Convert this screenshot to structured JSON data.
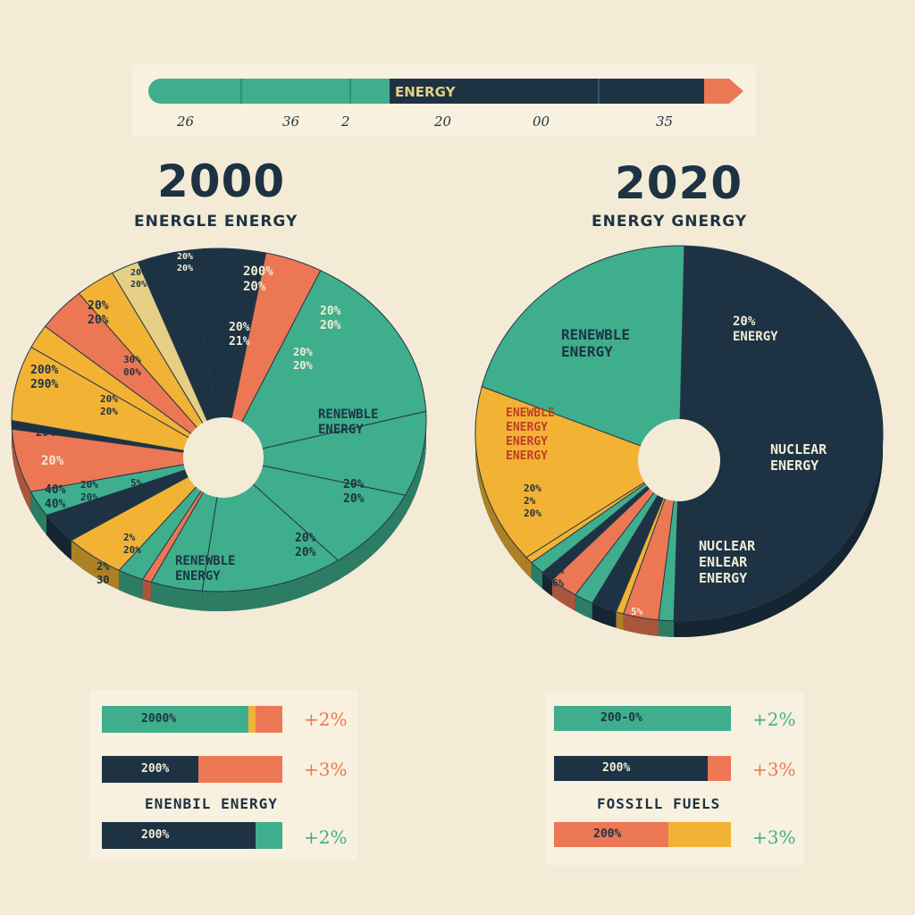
{
  "colors": {
    "teal": "#3fae8c",
    "navy": "#1d3344",
    "orange": "#ec7754",
    "yellow": "#f2b234",
    "cream": "#f3ebd6",
    "tan": "#e6cf85"
  },
  "banner": {
    "label": "ENERGY",
    "ticks": [
      "26",
      "36",
      "2",
      "20",
      "00",
      "35"
    ]
  },
  "chart_data": [
    {
      "type": "pie",
      "title": "2000",
      "subtitle": "ENERGLE ENERGY",
      "slices": [
        {
          "label": "200% 20%",
          "color": "navy",
          "share": 6
        },
        {
          "label": "20% 20%",
          "color": "orange",
          "share": 4.5
        },
        {
          "label": "RENEWBLE ENERGY",
          "color": "teal",
          "share": 16
        },
        {
          "label": "20% 20%",
          "color": "teal",
          "share": 8
        },
        {
          "label": "20% 20%",
          "color": "teal",
          "share": 8
        },
        {
          "label": "RENEWBLE ENERGY",
          "color": "teal",
          "share": 11
        },
        {
          "label": "2% 30",
          "color": "teal",
          "share": 4
        },
        {
          "label": "",
          "color": "orange",
          "share": 0.7
        },
        {
          "label": "",
          "color": "teal",
          "share": 2
        },
        {
          "label": "40% 40%",
          "color": "yellow",
          "share": 4.6
        },
        {
          "label": "20%",
          "color": "navy",
          "share": 3
        },
        {
          "label": "",
          "color": "teal",
          "share": 2.5
        },
        {
          "label": "200% 290%",
          "color": "orange",
          "share": 6
        },
        {
          "label": "",
          "color": "navy",
          "share": 0.8
        },
        {
          "label": "20% 20%",
          "color": "yellow",
          "share": 7
        },
        {
          "label": "",
          "color": "yellow",
          "share": 2.2
        },
        {
          "label": "",
          "color": "orange",
          "share": 4
        },
        {
          "label": "",
          "color": "yellow",
          "share": 3.2
        },
        {
          "label": "",
          "color": "tan",
          "share": 2.2
        },
        {
          "label": "",
          "color": "navy",
          "share": 4
        }
      ],
      "labels": {
        "navy_top": [
          "200%",
          "20%"
        ],
        "navy_mid": [
          "20%",
          "21%"
        ],
        "orange_right": [
          "20%",
          "20%"
        ],
        "orange_inner": [
          "20%",
          "20%"
        ],
        "renew1": [
          "RENEWBLE",
          "ENERGY"
        ],
        "teal_pct1": [
          "20%",
          "20%"
        ],
        "teal_pct2": [
          "20%",
          "20%"
        ],
        "renew2": [
          "RENEWBLE",
          "ENERGY"
        ],
        "teal_small": [
          "2%",
          "30"
        ],
        "teal_small2": [
          "2%",
          "20%"
        ],
        "yellow_left": [
          "40%",
          "40%"
        ],
        "yellow_inner": [
          "20%",
          "20%"
        ],
        "navy_left": "20%",
        "teal_left": "20%",
        "orange_left": [
          "200%",
          "290%"
        ],
        "orange_inner2": [
          "20%",
          "20%"
        ],
        "yellow_top": [
          "20%",
          "20%"
        ],
        "yellow_inner2": [
          "30%",
          "00%"
        ],
        "orange_thin": [
          "30%",
          "20%"
        ],
        "yellow_thin": [
          "20%",
          "20%"
        ],
        "navy_thin": [
          "20%",
          "20%"
        ],
        "small_misc": "5%"
      }
    },
    {
      "type": "pie",
      "title": "2020",
      "subtitle": "ENERGY GNERGY",
      "slices": [
        {
          "label": "NUCLEAR ENERGY",
          "color": "navy",
          "share": 50
        },
        {
          "label": "",
          "color": "teal",
          "share": 1.2
        },
        {
          "label": "",
          "color": "orange",
          "share": 2.8
        },
        {
          "label": "",
          "color": "yellow",
          "share": 0.6
        },
        {
          "label": "",
          "color": "navy",
          "share": 2
        },
        {
          "label": "",
          "color": "teal",
          "share": 1.5
        },
        {
          "label": "",
          "color": "orange",
          "share": 2.2
        },
        {
          "label": "",
          "color": "navy",
          "share": 1
        },
        {
          "label": "",
          "color": "teal",
          "share": 1.2
        },
        {
          "label": "",
          "color": "yellow",
          "share": 0.6
        },
        {
          "label": "ENEWBLE ENERGY",
          "color": "yellow",
          "share": 15.5
        },
        {
          "label": "RENEWBLE ENERGY",
          "color": "teal",
          "share": 21.4
        }
      ],
      "labels": {
        "navy_top": [
          "20% ",
          "ENERGY"
        ],
        "navy_mid": [
          "NUCLEAR",
          "ENERGY"
        ],
        "navy_low": [
          "NUCLEAR",
          "ENLEAR",
          "ENERGY"
        ],
        "renew": [
          "RENEWBLE",
          "ENERGY"
        ],
        "yellow": [
          "ENEWBLE",
          "ENERGY",
          "ENERGY",
          "ENERGY"
        ],
        "yellow_pct": [
          "20%",
          "2%",
          "20%"
        ],
        "orange_pct": [
          "5%",
          "6%"
        ],
        "orange_pct2": "5%",
        "teal_pct": "5"
      }
    }
  ],
  "legend_left": {
    "row1": {
      "text": "2000%",
      "change": "+2%"
    },
    "row2": {
      "text": "200%",
      "change": "+3%"
    },
    "caption": "ENENBIL ENERGY",
    "row3": {
      "text": "200%",
      "change": "+2%"
    }
  },
  "legend_right": {
    "row1": {
      "text": "200-0%",
      "change": "+2%"
    },
    "row2": {
      "text": "200%",
      "change": "+3%"
    },
    "caption": "FOSSILL FUELS",
    "row3": {
      "text": "200%",
      "change": "+3%"
    }
  }
}
